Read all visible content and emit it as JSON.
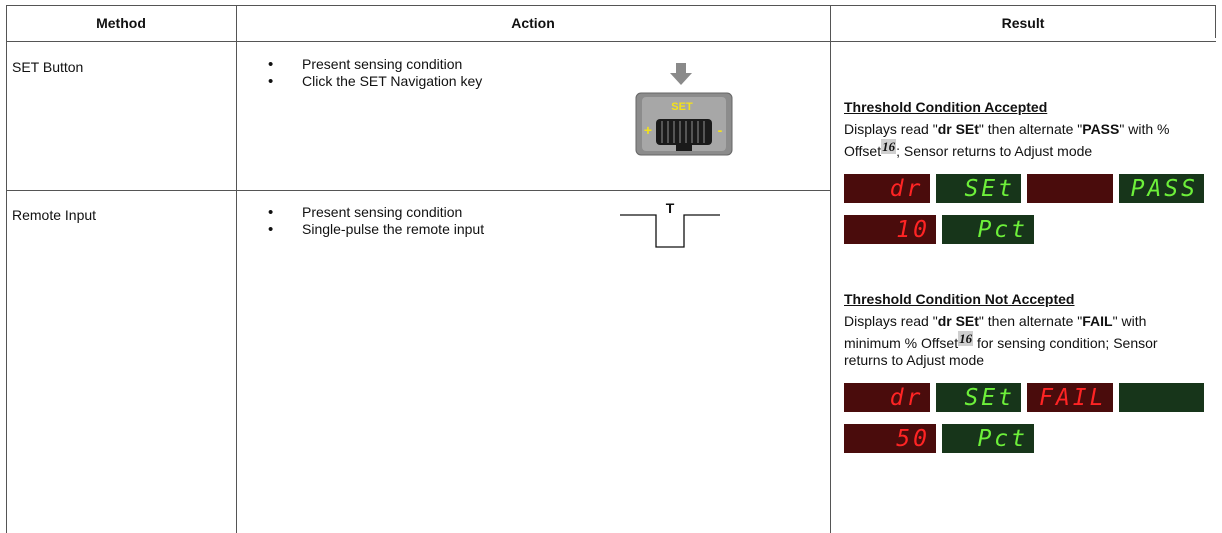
{
  "table": {
    "headers": [
      "Method",
      "Action",
      "Result"
    ],
    "rows": [
      {
        "method": "SET Button",
        "actions": [
          "Present sensing condition",
          "Click the SET Navigation key"
        ],
        "figure": {
          "label": "SET",
          "plus": "+",
          "minus": "-"
        }
      },
      {
        "method": "Remote Input",
        "actions": [
          "Present sensing condition",
          "Single-pulse the remote input"
        ],
        "figure": {
          "label": "T"
        }
      }
    ],
    "result": {
      "accepted": {
        "title": "Threshold Condition Accepted",
        "text": [
          "Displays read \"",
          "dr SEt",
          "\" then alternate \"",
          "PASS",
          "\" with % Offset",
          "16",
          "; Sensor returns to Adjust mode"
        ],
        "displays": [
          [
            {
              "text": "dr",
              "color": "red"
            },
            {
              "text": "SEt",
              "color": "green"
            },
            {
              "color": "red"
            },
            {
              "text": "PASS",
              "color": "green"
            }
          ],
          [
            {
              "text": "10",
              "color": "red"
            },
            {
              "text": "Pct",
              "color": "green"
            }
          ]
        ]
      },
      "not_accepted": {
        "title": "Threshold Condition Not Accepted",
        "text": [
          "Displays read \"",
          "dr SEt",
          "\" then alternate \"",
          "FAIL",
          "\" with minimum % Offset",
          "16",
          " for sensing condition; Sensor returns to Adjust mode"
        ],
        "displays": [
          [
            {
              "text": "dr",
              "color": "red"
            },
            {
              "text": "SEt",
              "color": "green"
            },
            {
              "text": "FAIL",
              "color": "red"
            },
            {
              "color": "green"
            }
          ],
          [
            {
              "text": "50",
              "color": "red"
            },
            {
              "text": "Pct",
              "color": "green"
            }
          ]
        ]
      }
    }
  }
}
